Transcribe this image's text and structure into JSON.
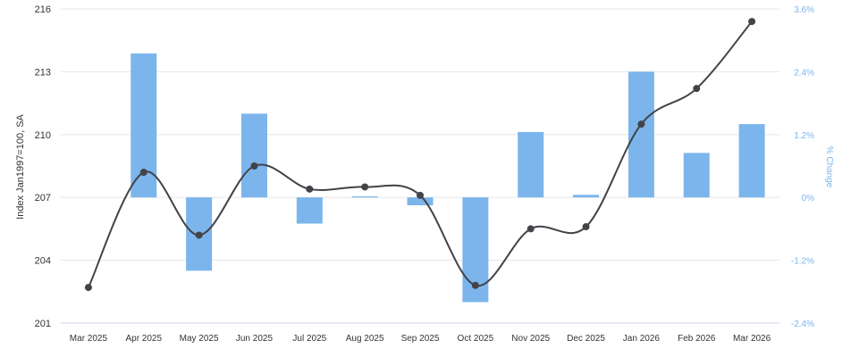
{
  "chart_data": {
    "type": "bar",
    "categories": [
      "Mar 2025",
      "Apr 2025",
      "May 2025",
      "Jun 2025",
      "Jul 2025",
      "Aug 2025",
      "Sep 2025",
      "Oct 2025",
      "Nov 2025",
      "Dec 2025",
      "Jan 2026",
      "Feb 2026",
      "Mar 2026"
    ],
    "series": [
      {
        "type": "bar",
        "axis": "right",
        "color": "#7cb5ec",
        "values": [
          null,
          2.75,
          -1.4,
          1.6,
          -0.5,
          0.02,
          -0.15,
          -2.0,
          1.25,
          0.05,
          2.4,
          0.85,
          1.4
        ]
      },
      {
        "type": "line",
        "axis": "left",
        "color": "#434348",
        "values": [
          202.7,
          208.2,
          205.2,
          208.5,
          207.4,
          207.5,
          207.1,
          202.8,
          205.5,
          205.6,
          210.5,
          212.2,
          215.4
        ]
      }
    ],
    "y_left": {
      "label": "Index Jan1997=100, SA",
      "min": 201,
      "max": 216,
      "ticks": [
        "201",
        "204",
        "207",
        "210",
        "213",
        "216"
      ]
    },
    "y_right": {
      "label": "% Change",
      "min": -2.4,
      "max": 3.6,
      "ticks": [
        "-2.4%",
        "-1.2%",
        "0%",
        "1.2%",
        "2.4%",
        "3.6%"
      ]
    },
    "grid": true,
    "legend": "none"
  }
}
